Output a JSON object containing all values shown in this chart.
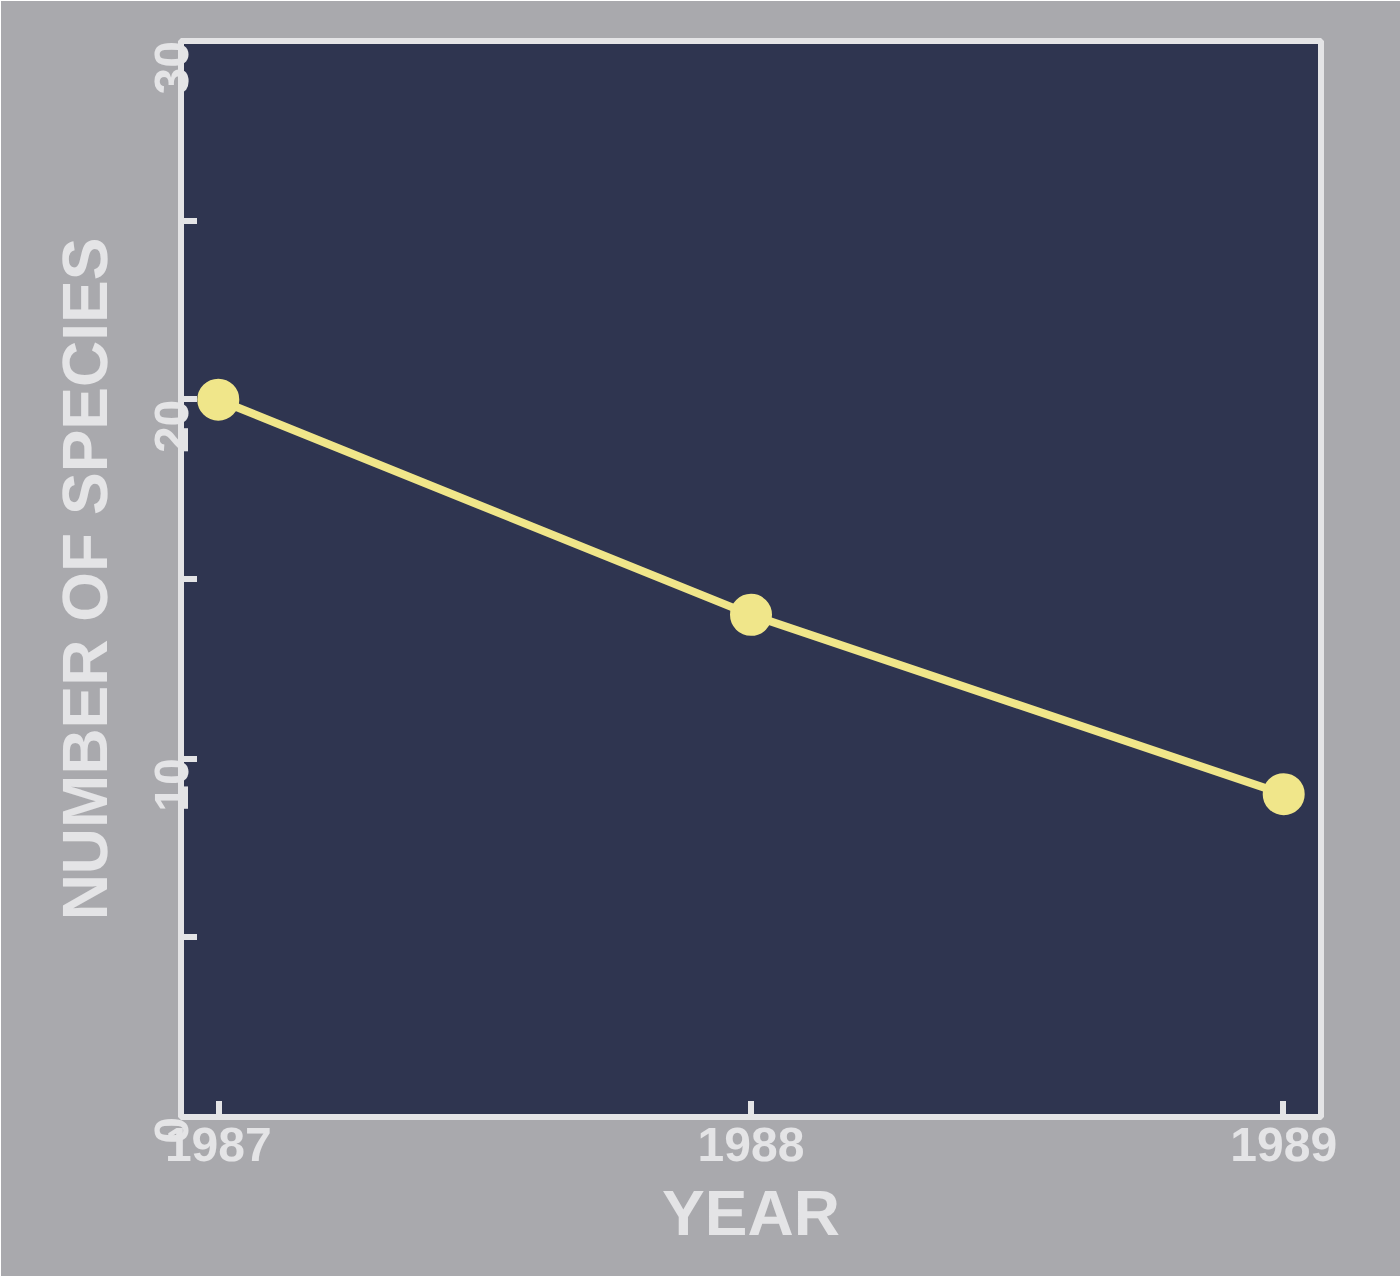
{
  "chart_data": {
    "type": "line",
    "xlabel": "YEAR",
    "ylabel": "NUMBER OF SPECIES",
    "x": [
      1987,
      1988,
      1989
    ],
    "series": [
      {
        "color": "#f0e68a",
        "values": [
          20,
          14,
          9
        ]
      }
    ],
    "xlim": [
      1986.93,
      1989.07
    ],
    "xticks": [
      1987,
      1988,
      1989
    ],
    "ylim": [
      0,
      30
    ],
    "yticks": [
      0,
      {
        "value": 5,
        "label": null
      },
      10,
      {
        "value": 15,
        "label": null
      },
      20,
      {
        "value": 25,
        "label": null
      },
      30
    ],
    "marker": "circle",
    "line_style": "solid",
    "grid": false
  }
}
